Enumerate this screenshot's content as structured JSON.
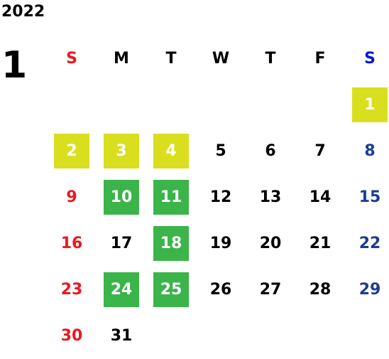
{
  "year": "2022",
  "month": "1",
  "colors": {
    "sunday": "#e8191f",
    "saturday_header": "#0018e0",
    "saturday": "#1c3c95",
    "weekday": "#000000",
    "highlight_yellow": "#d9df1e",
    "highlight_green": "#3bb44a"
  },
  "weekdays": [
    "S",
    "M",
    "T",
    "W",
    "T",
    "F",
    "S"
  ],
  "weeks": [
    [
      {
        "day": "",
        "hl": ""
      },
      {
        "day": "",
        "hl": ""
      },
      {
        "day": "",
        "hl": ""
      },
      {
        "day": "",
        "hl": ""
      },
      {
        "day": "",
        "hl": ""
      },
      {
        "day": "",
        "hl": ""
      },
      {
        "day": "1",
        "hl": "yellow"
      }
    ],
    [
      {
        "day": "2",
        "hl": "yellow"
      },
      {
        "day": "3",
        "hl": "yellow"
      },
      {
        "day": "4",
        "hl": "yellow"
      },
      {
        "day": "5",
        "hl": ""
      },
      {
        "day": "6",
        "hl": ""
      },
      {
        "day": "7",
        "hl": ""
      },
      {
        "day": "8",
        "hl": ""
      }
    ],
    [
      {
        "day": "9",
        "hl": ""
      },
      {
        "day": "10",
        "hl": "green"
      },
      {
        "day": "11",
        "hl": "green"
      },
      {
        "day": "12",
        "hl": ""
      },
      {
        "day": "13",
        "hl": ""
      },
      {
        "day": "14",
        "hl": ""
      },
      {
        "day": "15",
        "hl": ""
      }
    ],
    [
      {
        "day": "16",
        "hl": ""
      },
      {
        "day": "17",
        "hl": ""
      },
      {
        "day": "18",
        "hl": "green"
      },
      {
        "day": "19",
        "hl": ""
      },
      {
        "day": "20",
        "hl": ""
      },
      {
        "day": "21",
        "hl": ""
      },
      {
        "day": "22",
        "hl": ""
      }
    ],
    [
      {
        "day": "23",
        "hl": ""
      },
      {
        "day": "24",
        "hl": "green"
      },
      {
        "day": "25",
        "hl": "green"
      },
      {
        "day": "26",
        "hl": ""
      },
      {
        "day": "27",
        "hl": ""
      },
      {
        "day": "28",
        "hl": ""
      },
      {
        "day": "29",
        "hl": ""
      }
    ],
    [
      {
        "day": "30",
        "hl": ""
      },
      {
        "day": "31",
        "hl": ""
      },
      {
        "day": "",
        "hl": ""
      },
      {
        "day": "",
        "hl": ""
      },
      {
        "day": "",
        "hl": ""
      },
      {
        "day": "",
        "hl": ""
      },
      {
        "day": "",
        "hl": ""
      }
    ]
  ]
}
